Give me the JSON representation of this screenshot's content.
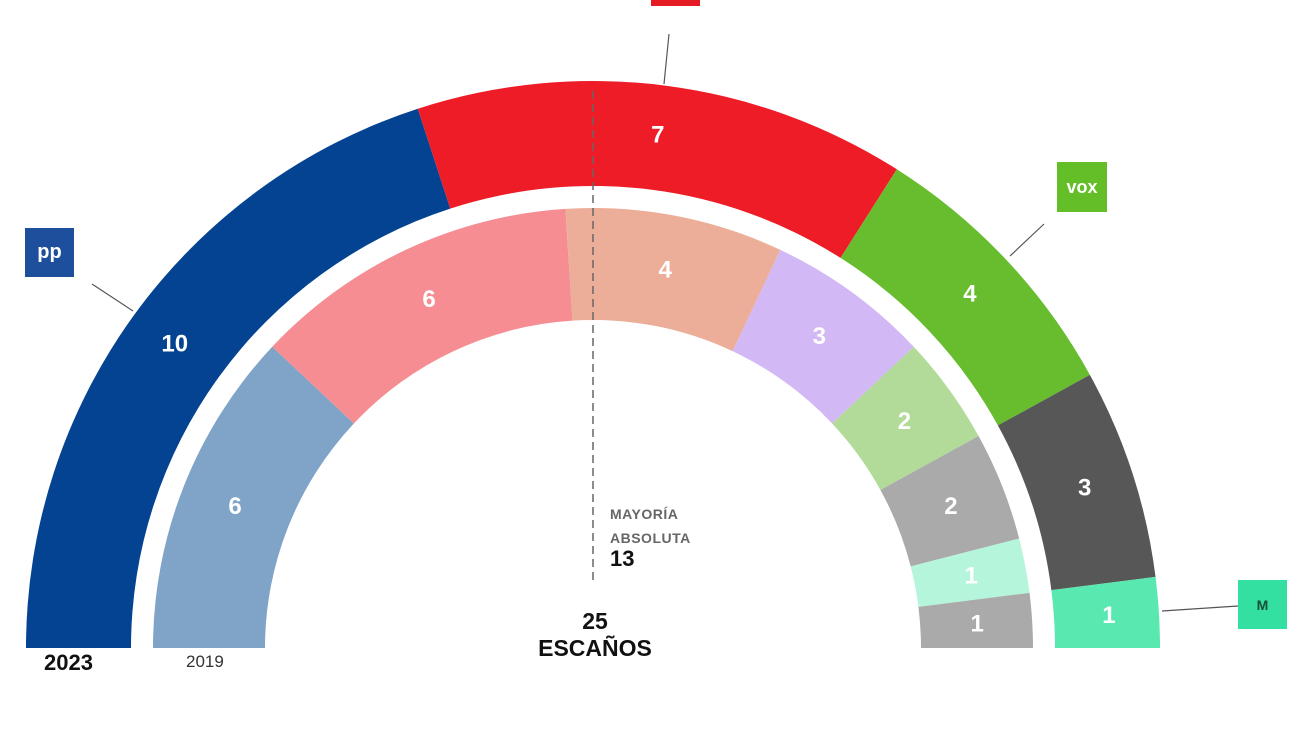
{
  "chart_data": {
    "type": "hemicycle",
    "total_seats": 25,
    "total_label": "25",
    "seats_word": "ESCAÑOS",
    "majority_label": "MAYORÍA ABSOLUTA",
    "majority_seats": 13,
    "rings": [
      {
        "year": "2023",
        "segments": [
          {
            "seats": 10,
            "color": "#034391"
          },
          {
            "seats": 7,
            "color": "#ed1c27"
          },
          {
            "seats": 4,
            "color": "#67bd2d"
          },
          {
            "seats": 3,
            "color": "#575757"
          },
          {
            "seats": 1,
            "color": "#5ae8b1"
          }
        ]
      },
      {
        "year": "2019",
        "segments": [
          {
            "seats": 6,
            "color": "#80a3c8"
          },
          {
            "seats": 6,
            "color": "#f58d92"
          },
          {
            "seats": 4,
            "color": "#ecae98"
          },
          {
            "seats": 3,
            "color": "#d2b8f5"
          },
          {
            "seats": 2,
            "color": "#b2db99"
          },
          {
            "seats": 2,
            "color": "#aaaaaa"
          },
          {
            "seats": 1,
            "color": "#b5f5dc"
          },
          {
            "seats": 1,
            "color": "#aaaaaa"
          }
        ]
      }
    ]
  },
  "logos": [
    {
      "icon": "pp-logo-icon",
      "text": "pp",
      "color": "#1d4f9c"
    },
    {
      "icon": "psoe-logo-icon",
      "text": "",
      "color": "#e51b23"
    },
    {
      "icon": "vox-logo-icon",
      "text": "vox",
      "color": "#63be27"
    },
    {
      "icon": "mas-madrid-logo-icon",
      "text": "M",
      "color": "#34e0a1"
    }
  ]
}
